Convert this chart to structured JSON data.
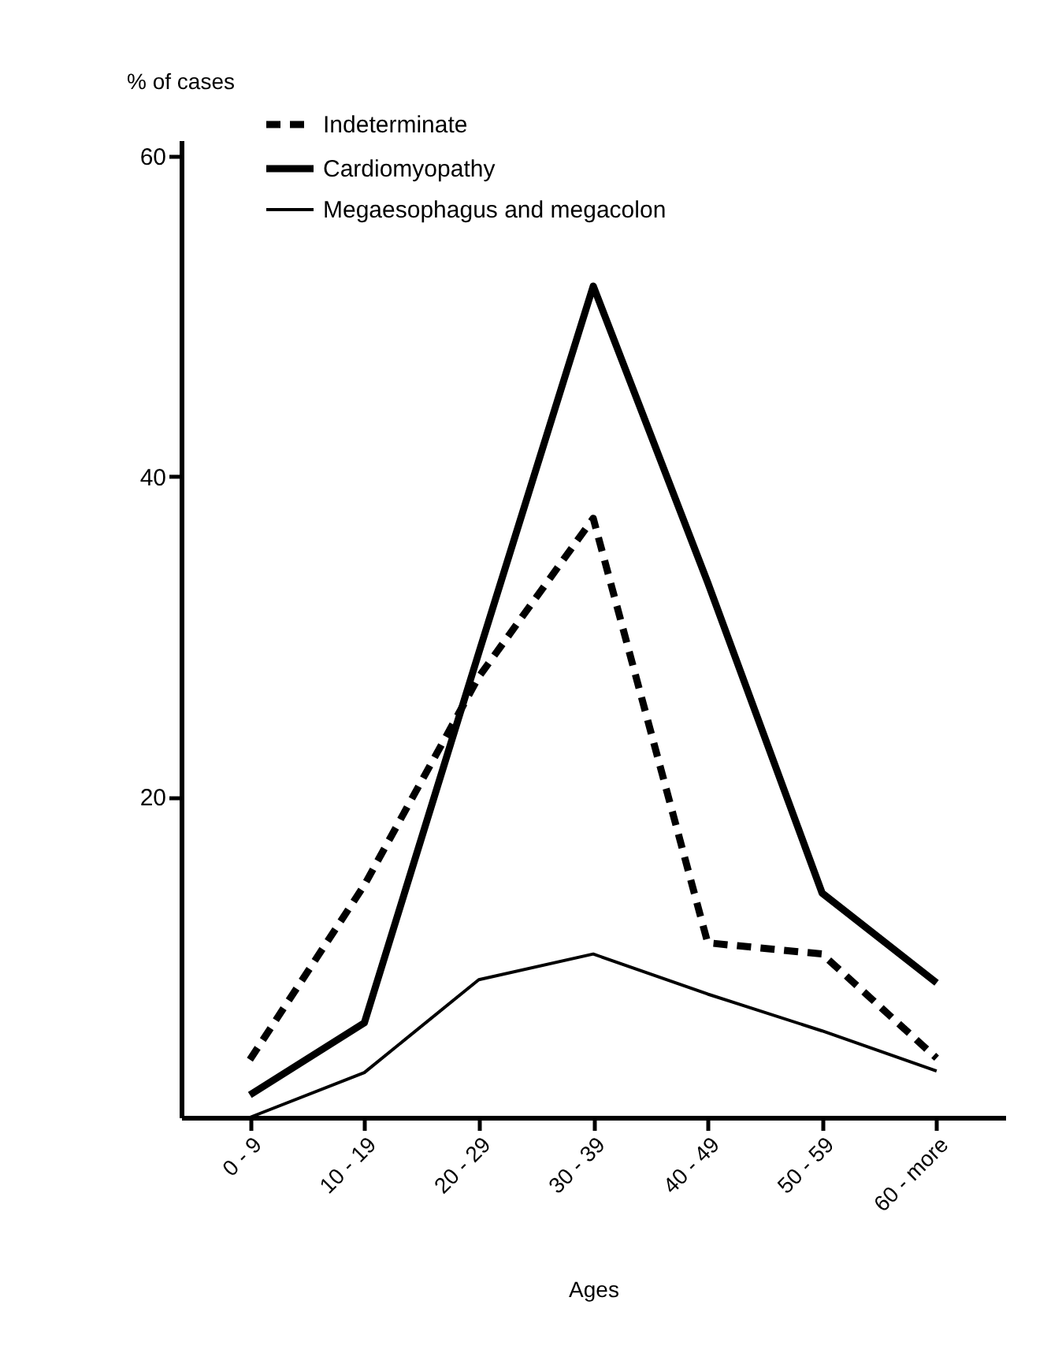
{
  "chart_data": {
    "type": "line",
    "xlabel": "Ages",
    "ylabel": "% of cases",
    "categories": [
      "0 - 9",
      "10 - 19",
      "20 - 29",
      "30 - 39",
      "40 - 49",
      "50 - 59",
      "60 - more"
    ],
    "series": [
      {
        "name": "Indeterminate",
        "color": "#000000",
        "line_style": "dashed",
        "values": [
          3.6,
          14.5,
          27.5,
          37.4,
          10.9,
          10.2,
          3.7
        ]
      },
      {
        "name": "Cardiomyopathy",
        "color": "#000000",
        "line_style": "solid",
        "values": [
          1.4,
          5.9,
          29,
          51.9,
          33.4,
          14,
          8.4
        ]
      },
      {
        "name": "Megaesophagus and megacolon",
        "color": "#000000",
        "line_style": "solid",
        "values": [
          0,
          2.8,
          8.6,
          10.2,
          7.7,
          5.4,
          2.9
        ]
      }
    ],
    "ylim": [
      0,
      61
    ],
    "yticks": [
      20,
      40,
      60
    ],
    "grid": false,
    "legend": "top left",
    "marker": "none"
  }
}
